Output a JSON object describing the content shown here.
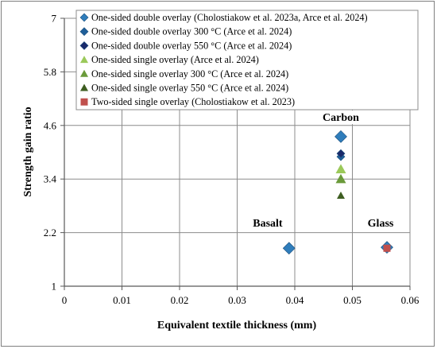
{
  "chart_data": {
    "type": "scatter",
    "xlabel": "Equivalent textile thickness (mm)",
    "ylabel": "Strength gain ratio",
    "xlim": [
      0,
      0.06
    ],
    "ylim": [
      1,
      7
    ],
    "x_ticks": [
      "0",
      "0.01",
      "0.02",
      "0.03",
      "0.04",
      "0.05",
      "0.06"
    ],
    "y_ticks": [
      "1",
      "2.2",
      "3.4",
      "4.6",
      "5.8",
      "7"
    ],
    "grid": true,
    "legend_position": "top-right",
    "annotations": [
      {
        "text": "Carbon",
        "x": 0.048,
        "y": 4.72
      },
      {
        "text": "Basalt",
        "x": 0.0353,
        "y": 2.35
      },
      {
        "text": "Glass",
        "x": 0.0549,
        "y": 2.35
      }
    ],
    "series": [
      {
        "name": "One-sided double overlay (Cholostiakow et al. 2023a, Arce et al. 2024)",
        "marker": "diamond",
        "color": "#2f7dbb",
        "size": "large",
        "points": [
          {
            "x": 0.039,
            "y": 1.85
          },
          {
            "x": 0.048,
            "y": 4.35
          },
          {
            "x": 0.056,
            "y": 1.87
          }
        ]
      },
      {
        "name": "One-sided double overlay 300 °C (Arce et al. 2024)",
        "marker": "diamond",
        "color": "#1f5f99",
        "size": "small",
        "points": [
          {
            "x": 0.048,
            "y": 3.9
          }
        ]
      },
      {
        "name": "One-sided double overlay 550 °C (Arce et al. 2024)",
        "marker": "diamond",
        "color": "#1a2a6b",
        "size": "small",
        "points": [
          {
            "x": 0.048,
            "y": 3.97
          }
        ]
      },
      {
        "name": "One-sided single overlay (Arce et al. 2024)",
        "marker": "triangle",
        "color": "#9bc95a",
        "size": "large",
        "points": [
          {
            "x": 0.048,
            "y": 3.62
          }
        ]
      },
      {
        "name": "One-sided single overlay 300 °C (Arce et al. 2024)",
        "marker": "triangle",
        "color": "#6a9a3a",
        "size": "large",
        "points": [
          {
            "x": 0.048,
            "y": 3.4
          }
        ]
      },
      {
        "name": "One-sided single overlay 550 °C (Arce et al. 2024)",
        "marker": "triangle",
        "color": "#3e5e21",
        "size": "small",
        "points": [
          {
            "x": 0.048,
            "y": 3.03
          }
        ]
      },
      {
        "name": "Two-sided single overlay (Cholostiakow et al. 2023)",
        "marker": "square",
        "color": "#c0504d",
        "size": "small",
        "points": [
          {
            "x": 0.056,
            "y": 1.85
          }
        ]
      }
    ]
  }
}
